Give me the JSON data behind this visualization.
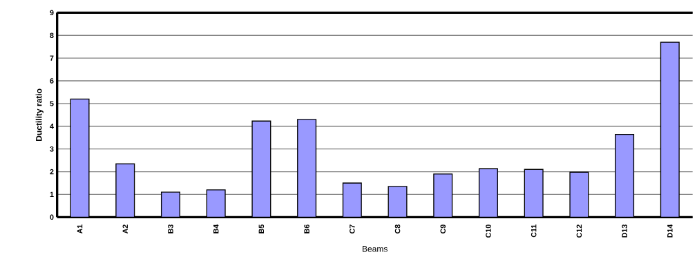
{
  "chart_data": {
    "type": "bar",
    "xlabel": "Beams",
    "ylabel": "Ductility ratio",
    "categories": [
      "A1",
      "A2",
      "B3",
      "B4",
      "B5",
      "B6",
      "C7",
      "C8",
      "C9",
      "C10",
      "C11",
      "C12",
      "D13",
      "D14"
    ],
    "values": [
      5.2,
      2.35,
      1.1,
      1.2,
      4.23,
      4.3,
      1.5,
      1.35,
      1.9,
      2.13,
      2.1,
      1.98,
      3.64,
      7.7
    ],
    "color": "#9999ff",
    "ylim": [
      0,
      9
    ],
    "yticks": [
      0,
      1,
      2,
      3,
      4,
      5,
      6,
      7,
      8,
      9
    ],
    "grid": "y"
  }
}
